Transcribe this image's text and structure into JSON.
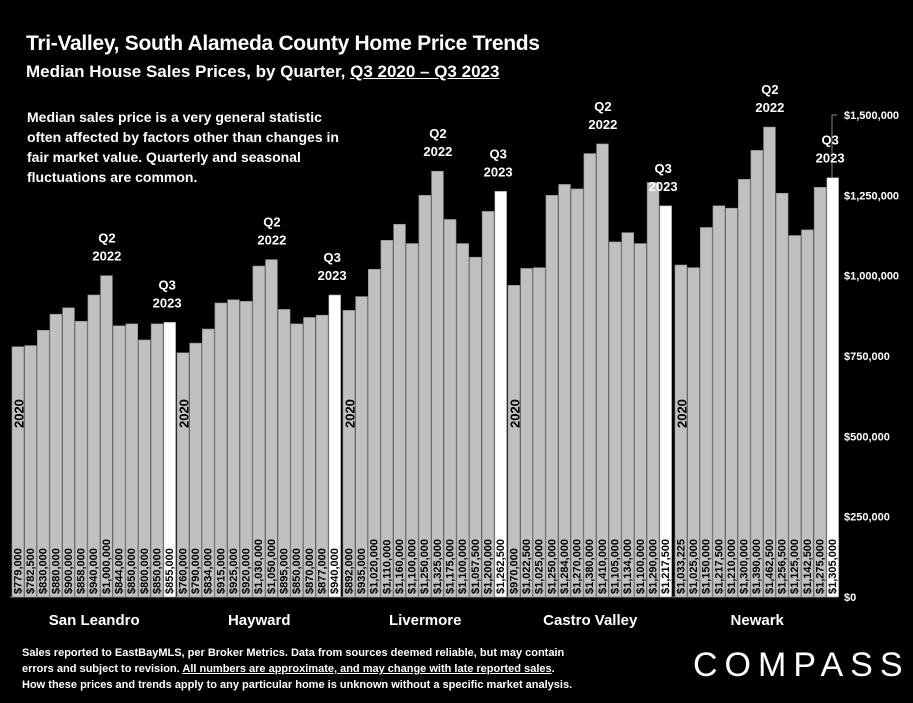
{
  "header": {
    "title": "Tri-Valley, South Alameda County Home Price Trends",
    "subtitle_prefix": "Median House Sales Prices, by Quarter,",
    "subtitle_range": "Q3 2020 – Q3 2023"
  },
  "note": "Median sales price is a very general statistic often affected by factors other than changes in fair market value. Quarterly and seasonal fluctuations are common.",
  "footer": {
    "line1": "Sales reported to EastBayMLS, per Broker Metrics. Data from sources deemed reliable, but may contain",
    "line2_prefix": "errors and subject to revision.",
    "line2_underlined": "All numbers are approximate, and may change with late reported sales",
    "line2_suffix": ".",
    "line3": "How these prices and trends apply to any particular home is unknown without a specific market analysis."
  },
  "logo": "COMPASS",
  "colors": {
    "background": "#000000",
    "bar": "#c0c0c0",
    "bar_latest": "#ffffff"
  },
  "chart_data": {
    "type": "bar",
    "ylim": [
      0,
      1500000
    ],
    "yticks": [
      0,
      250000,
      500000,
      750000,
      1000000,
      1250000,
      1500000
    ],
    "ytick_labels": [
      "$0",
      "$250,000",
      "$500,000",
      "$750,000",
      "$1,000,000",
      "$1,250,000",
      "$1,500,000"
    ],
    "annotation_peak": [
      "Q2",
      "2022"
    ],
    "annotation_latest": [
      "Q3",
      "2023"
    ],
    "start_label": "2020",
    "groups": [
      {
        "name": "San Leandro",
        "values": [
          779000,
          782500,
          830000,
          880000,
          900000,
          858000,
          940000,
          1000000,
          844000,
          850000,
          800000,
          850000,
          855000
        ],
        "labels": [
          "$779,000",
          "$782,500",
          "$830,000",
          "$880,000",
          "$900,000",
          "$858,000",
          "$940,000",
          "$1,000,000",
          "$844,000",
          "$850,000",
          "$800,000",
          "$850,000",
          "$855,000"
        ]
      },
      {
        "name": "Hayward",
        "values": [
          760000,
          790000,
          834000,
          915000,
          925000,
          920000,
          1030000,
          1050000,
          895000,
          850000,
          870000,
          877000,
          940000
        ],
        "labels": [
          "$760,000",
          "$790,000",
          "$834,000",
          "$915,000",
          "$925,000",
          "$920,000",
          "$1,030,000",
          "$1,050,000",
          "$895,000",
          "$850,000",
          "$870,000",
          "$877,000",
          "$940,000"
        ]
      },
      {
        "name": "Livermore",
        "values": [
          892000,
          935000,
          1020000,
          1110000,
          1160000,
          1100000,
          1250000,
          1325000,
          1175000,
          1100000,
          1057500,
          1200000,
          1262500
        ],
        "labels": [
          "$892,000",
          "$935,000",
          "$1,020,000",
          "$1,110,000",
          "$1,160,000",
          "$1,100,000",
          "$1,250,000",
          "$1,325,000",
          "$1,175,000",
          "$1,100,000",
          "$1,057,500",
          "$1,200,000",
          "$1,262,500"
        ]
      },
      {
        "name": "Castro Valley",
        "values": [
          970000,
          1022500,
          1025000,
          1250000,
          1284000,
          1270000,
          1380000,
          1410000,
          1105000,
          1134000,
          1100000,
          1290000,
          1217500
        ],
        "labels": [
          "$970,000",
          "$1,022,500",
          "$1,025,000",
          "$1,250,000",
          "$1,284,000",
          "$1,270,000",
          "$1,380,000",
          "$1,410,000",
          "$1,105,000",
          "$1,134,000",
          "$1,100,000",
          "$1,290,000",
          "$1,217,500"
        ]
      },
      {
        "name": "Newark",
        "values": [
          1033225,
          1025000,
          1150000,
          1217500,
          1210000,
          1300000,
          1390000,
          1462500,
          1256500,
          1125000,
          1142500,
          1275000,
          1305000
        ],
        "labels": [
          "$1,033,225",
          "$1,025,000",
          "$1,150,000",
          "$1,217,500",
          "$1,210,000",
          "$1,300,000",
          "$1,390,000",
          "$1,462,500",
          "$1,256,500",
          "$1,125,000",
          "$1,142,500",
          "$1,275,000",
          "$1,305,000"
        ]
      }
    ]
  }
}
